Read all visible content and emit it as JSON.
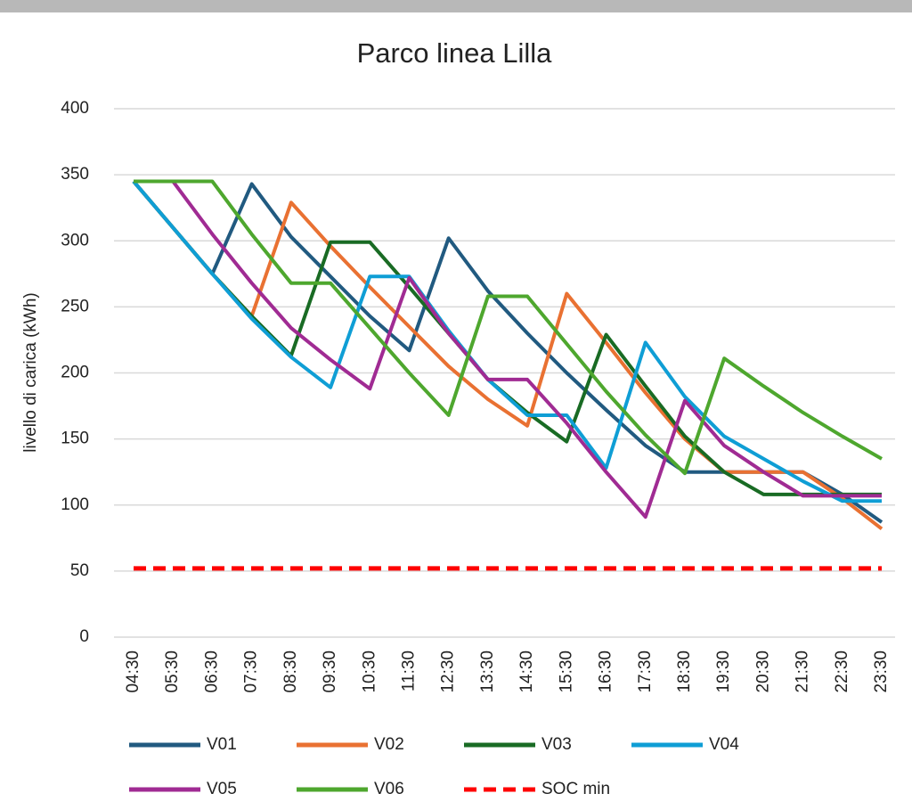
{
  "chart_data": {
    "type": "line",
    "title": "Parco linea Lilla",
    "y_label": "livello di carica (kWh)",
    "categories": [
      "04:30",
      "05:30",
      "06:30",
      "07:30",
      "08:30",
      "09:30",
      "10:30",
      "11:30",
      "12:30",
      "13:30",
      "14:30",
      "15:30",
      "16:30",
      "17:30",
      "18:30",
      "19:30",
      "20:30",
      "21:30",
      "22:30",
      "23:30"
    ],
    "series": [
      {
        "name": "V01",
        "color": "#215a80",
        "values": [
          345,
          310,
          275,
          343,
          303,
          273,
          243,
          217,
          302,
          262,
          230,
          200,
          172,
          145,
          125,
          125,
          125,
          125,
          108,
          87
        ]
      },
      {
        "name": "V02",
        "color": "#e97132",
        "values": [
          345,
          310,
          275,
          243,
          329,
          296,
          265,
          235,
          205,
          180,
          160,
          260,
          223,
          185,
          150,
          125,
          125,
          125,
          105,
          82
        ]
      },
      {
        "name": "V03",
        "color": "#196b24",
        "values": [
          345,
          310,
          275,
          243,
          213,
          299,
          299,
          265,
          230,
          195,
          170,
          148,
          229,
          190,
          152,
          125,
          108,
          108,
          108,
          108
        ]
      },
      {
        "name": "V04",
        "color": "#0f9ed5",
        "values": [
          345,
          310,
          275,
          241,
          212,
          189,
          273,
          273,
          232,
          195,
          168,
          168,
          128,
          223,
          182,
          152,
          135,
          118,
          103,
          103
        ]
      },
      {
        "name": "V05",
        "color": "#a02b93",
        "values": [
          345,
          345,
          305,
          268,
          234,
          210,
          188,
          272,
          230,
          195,
          195,
          162,
          125,
          91,
          179,
          145,
          125,
          107,
          107,
          107
        ]
      },
      {
        "name": "V06",
        "color": "#4ea72e",
        "values": [
          345,
          345,
          345,
          305,
          268,
          268,
          234,
          200,
          168,
          258,
          258,
          222,
          186,
          153,
          124,
          211,
          190,
          170,
          152,
          135
        ]
      },
      {
        "name": "SOC min",
        "color": "#ff0000",
        "dashed": true,
        "values": [
          52,
          52,
          52,
          52,
          52,
          52,
          52,
          52,
          52,
          52,
          52,
          52,
          52,
          52,
          52,
          52,
          52,
          52,
          52,
          52
        ]
      }
    ],
    "ylim": [
      0,
      400
    ],
    "yticks": [
      0,
      50,
      100,
      150,
      200,
      250,
      300,
      350,
      400
    ],
    "grid": true
  }
}
